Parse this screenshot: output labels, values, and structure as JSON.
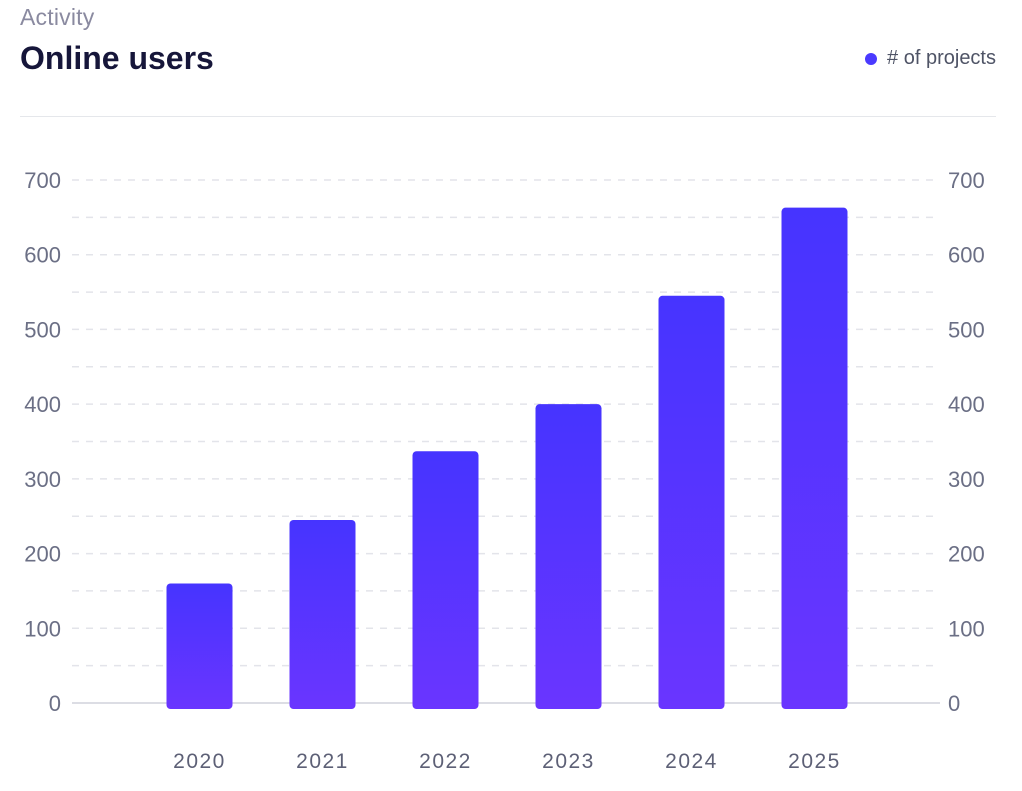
{
  "header": {
    "eyebrow": "Activity",
    "title": "Online users"
  },
  "legend": {
    "label": "# of projects",
    "color": "#4a3aff"
  },
  "colors": {
    "bar_top": "#4634ff",
    "bar_bottom": "#6a35ff",
    "grid": "#e3e4ea",
    "baseline": "#dcdde4"
  },
  "chart_data": {
    "type": "bar",
    "title": "Online users",
    "xlabel": "",
    "ylabel": "",
    "categories": [
      "2020",
      "2021",
      "2022",
      "2023",
      "2024",
      "2025"
    ],
    "series": [
      {
        "name": "# of projects",
        "values": [
          160,
          245,
          337,
          400,
          545,
          663
        ]
      }
    ],
    "ylim": [
      0,
      700
    ],
    "yticks": [
      0,
      100,
      200,
      300,
      400,
      500,
      600,
      700
    ],
    "ytick_labels": [
      "0",
      "100",
      "200",
      "300",
      "400",
      "500",
      "600",
      "700"
    ],
    "secondary_axis": true,
    "grid": true,
    "legend_position": "top-right"
  }
}
